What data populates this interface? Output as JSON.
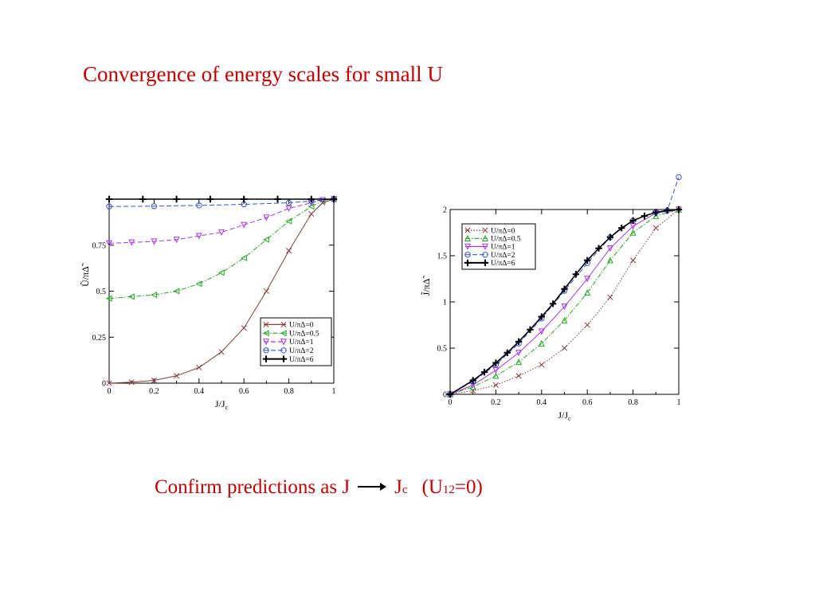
{
  "slide": {
    "title": "Convergence of energy scales for small U",
    "caption": {
      "prefix": "Confirm predictions as J",
      "target": "J",
      "target_sub": "c",
      "condition_open": "(U",
      "condition_sub": "12",
      "condition_close": "=0)"
    }
  },
  "chart_data": [
    {
      "type": "line",
      "xlabel": "J/J",
      "xlabel_sub": "c",
      "ylabel": "Ũ/πΔ̃",
      "xlim": [
        0,
        1
      ],
      "ylim": [
        0,
        1.0
      ],
      "x_ticks": [
        0,
        0.2,
        0.4,
        0.6,
        0.8,
        1
      ],
      "y_ticks": [
        0,
        0.25,
        0.5,
        0.75
      ],
      "legend_position": "bottom-right",
      "series": [
        {
          "name": "U/πΔ=0",
          "color": "#8b3a3a",
          "marker": "x",
          "dash": "solid",
          "x": [
            0,
            0.1,
            0.2,
            0.3,
            0.4,
            0.5,
            0.6,
            0.7,
            0.8,
            0.9,
            0.95,
            1.0
          ],
          "y": [
            0,
            0.005,
            0.015,
            0.04,
            0.085,
            0.17,
            0.3,
            0.5,
            0.72,
            0.92,
            0.98,
            1.0
          ]
        },
        {
          "name": "U/πΔ=0.5",
          "color": "#22aa22",
          "marker": "triangle-left",
          "dash": "dashdot",
          "x": [
            0,
            0.1,
            0.2,
            0.3,
            0.4,
            0.5,
            0.6,
            0.7,
            0.8,
            0.9,
            0.95,
            1.0
          ],
          "y": [
            0.46,
            0.47,
            0.48,
            0.5,
            0.54,
            0.6,
            0.68,
            0.78,
            0.88,
            0.96,
            0.99,
            1.0
          ]
        },
        {
          "name": "U/πΔ=1",
          "color": "#aa33ee",
          "marker": "triangle-down",
          "dash": "dash",
          "x": [
            0,
            0.1,
            0.2,
            0.3,
            0.4,
            0.5,
            0.6,
            0.7,
            0.8,
            0.9,
            0.95,
            1.0
          ],
          "y": [
            0.76,
            0.765,
            0.77,
            0.78,
            0.8,
            0.82,
            0.86,
            0.9,
            0.95,
            0.98,
            0.995,
            1.0
          ]
        },
        {
          "name": "U/πΔ=2",
          "color": "#3355dd",
          "marker": "circle",
          "dash": "dash",
          "x": [
            0,
            0.2,
            0.4,
            0.6,
            0.8,
            0.9,
            1.0
          ],
          "y": [
            0.96,
            0.962,
            0.966,
            0.972,
            0.98,
            0.99,
            1.0
          ]
        },
        {
          "name": "U/πΔ=6",
          "color": "#000000",
          "marker": "plus",
          "dash": "solid",
          "x": [
            0,
            0.15,
            0.3,
            0.45,
            0.6,
            0.75,
            0.9,
            1.0
          ],
          "y": [
            1.0,
            1.0,
            1.0,
            1.0,
            1.0,
            1.0,
            1.0,
            1.0
          ]
        }
      ]
    },
    {
      "type": "line",
      "xlabel": "J/J",
      "xlabel_sub": "c",
      "ylabel": "J̃/πΔ̃",
      "xlim": [
        0,
        1
      ],
      "ylim": [
        0,
        2.0
      ],
      "x_ticks": [
        0,
        0.2,
        0.4,
        0.6,
        0.8,
        1
      ],
      "y_ticks": [
        0,
        0.5,
        1,
        1.5,
        2
      ],
      "legend_position": "top-left",
      "series": [
        {
          "name": "U/πΔ=0",
          "color": "#8b3a3a",
          "marker": "x",
          "dash": "dot",
          "x": [
            0,
            0.1,
            0.2,
            0.3,
            0.4,
            0.5,
            0.6,
            0.7,
            0.8,
            0.9,
            1.0
          ],
          "y": [
            0,
            0.04,
            0.1,
            0.2,
            0.32,
            0.5,
            0.75,
            1.05,
            1.45,
            1.8,
            2.0
          ]
        },
        {
          "name": "U/πΔ=0.5",
          "color": "#22aa22",
          "marker": "triangle-up",
          "dash": "dashdot",
          "x": [
            0,
            0.1,
            0.2,
            0.3,
            0.4,
            0.5,
            0.6,
            0.7,
            0.8,
            0.9,
            1.0
          ],
          "y": [
            0,
            0.08,
            0.2,
            0.35,
            0.55,
            0.8,
            1.1,
            1.45,
            1.75,
            1.93,
            2.0
          ]
        },
        {
          "name": "U/πΔ=1",
          "color": "#aa33ee",
          "marker": "triangle-down",
          "dash": "solid",
          "x": [
            0,
            0.1,
            0.2,
            0.3,
            0.4,
            0.5,
            0.6,
            0.7,
            0.8,
            0.9,
            1.0
          ],
          "y": [
            0,
            0.1,
            0.26,
            0.45,
            0.68,
            0.95,
            1.25,
            1.58,
            1.82,
            1.96,
            2.0
          ]
        },
        {
          "name": "U/πΔ=2",
          "color": "#3355dd",
          "marker": "circle",
          "dash": "dash",
          "x": [
            0,
            0.1,
            0.2,
            0.3,
            0.4,
            0.5,
            0.6,
            0.7,
            0.8,
            0.9,
            0.95,
            1.0
          ],
          "y": [
            0,
            0.14,
            0.32,
            0.55,
            0.82,
            1.12,
            1.42,
            1.7,
            1.88,
            1.97,
            1.99,
            2.35
          ]
        },
        {
          "name": "U/πΔ=6",
          "color": "#000000",
          "marker": "plus",
          "dash": "solid",
          "x": [
            0,
            0.1,
            0.15,
            0.2,
            0.25,
            0.3,
            0.35,
            0.4,
            0.45,
            0.5,
            0.55,
            0.6,
            0.65,
            0.7,
            0.75,
            0.8,
            0.85,
            0.9,
            0.95,
            1.0
          ],
          "y": [
            0,
            0.15,
            0.24,
            0.34,
            0.45,
            0.57,
            0.7,
            0.84,
            0.98,
            1.14,
            1.3,
            1.45,
            1.58,
            1.7,
            1.8,
            1.88,
            1.93,
            1.97,
            1.99,
            2.0
          ]
        }
      ]
    }
  ]
}
